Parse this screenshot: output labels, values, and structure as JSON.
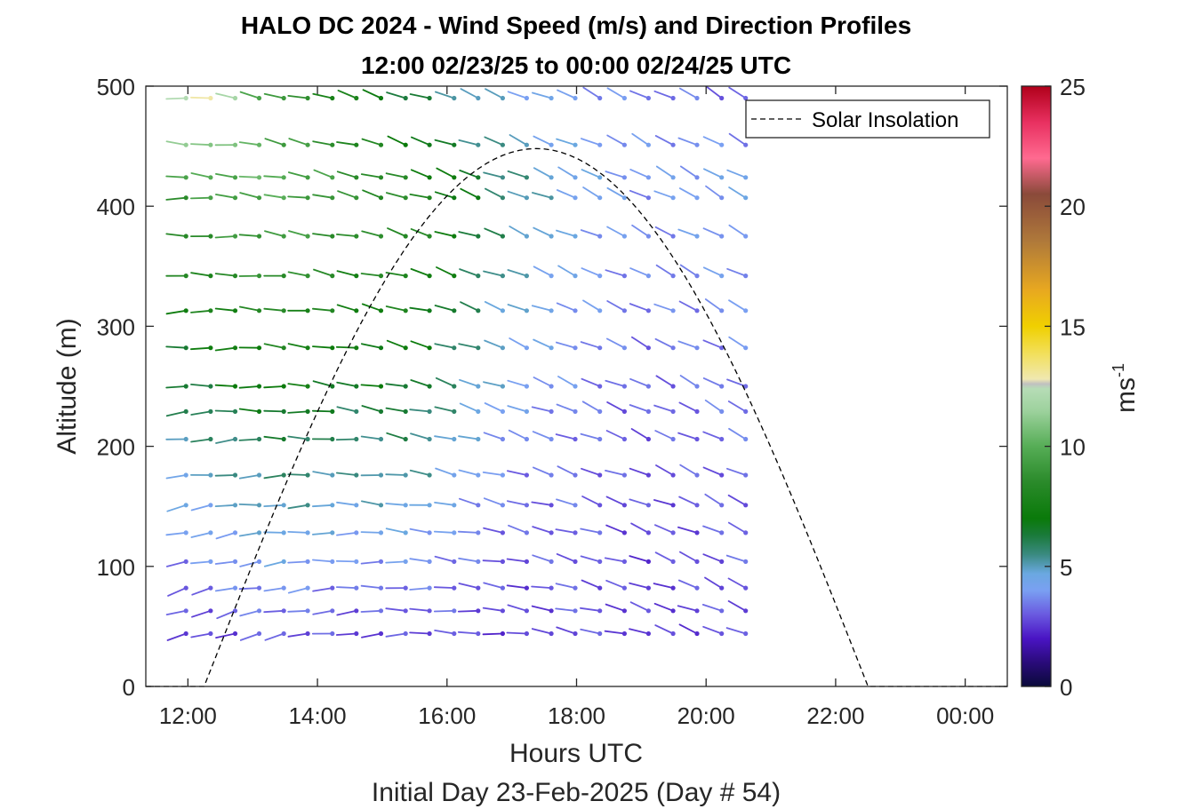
{
  "chart_data": {
    "type": "wind_barb_profile",
    "title": "HALO DC 2024 - Wind Speed (m/s) and Direction Profiles",
    "subtitle": "12:00 02/23/25 to 00:00 02/24/25  UTC",
    "xlabel": "Hours UTC",
    "xlabel2": "Initial Day 23-Feb-2025 (Day # 54)",
    "ylabel": "Altitude (m)",
    "xlim_hours": [
      11.35,
      24.65
    ],
    "ylim": [
      0,
      500
    ],
    "x_ticks": [
      {
        "hour": 12,
        "label": "12:00"
      },
      {
        "hour": 14,
        "label": "14:00"
      },
      {
        "hour": 16,
        "label": "16:00"
      },
      {
        "hour": 18,
        "label": "18:00"
      },
      {
        "hour": 20,
        "label": "20:00"
      },
      {
        "hour": 22,
        "label": "22:00"
      },
      {
        "hour": 24,
        "label": "00:00"
      }
    ],
    "y_ticks": [
      0,
      100,
      200,
      300,
      400,
      500
    ],
    "colorbar": {
      "label": "ms",
      "label_exponent": "-1",
      "range": [
        0,
        25
      ],
      "ticks": [
        0,
        5,
        10,
        15,
        20,
        25
      ],
      "stops": [
        {
          "v": 0,
          "c": "#0a0a3a"
        },
        {
          "v": 1,
          "c": "#2a0b7a"
        },
        {
          "v": 2,
          "c": "#4a14c4"
        },
        {
          "v": 3,
          "c": "#6a5ae0"
        },
        {
          "v": 4,
          "c": "#7aa0f2"
        },
        {
          "v": 4.7,
          "c": "#6aa8e0"
        },
        {
          "v": 5.5,
          "c": "#3a8a80"
        },
        {
          "v": 6.3,
          "c": "#1a7a3a"
        },
        {
          "v": 7,
          "c": "#0a7a0a"
        },
        {
          "v": 8.5,
          "c": "#2a8a2a"
        },
        {
          "v": 10,
          "c": "#56ad56"
        },
        {
          "v": 11.5,
          "c": "#9ed29e"
        },
        {
          "v": 12.4,
          "c": "#b6dcb6"
        },
        {
          "v": 12.6,
          "c": "#c0c0c0"
        },
        {
          "v": 12.8,
          "c": "#f0e8b0"
        },
        {
          "v": 13.8,
          "c": "#f2e060"
        },
        {
          "v": 15,
          "c": "#f0d000"
        },
        {
          "v": 16.5,
          "c": "#e8a820"
        },
        {
          "v": 18.5,
          "c": "#b07a3a"
        },
        {
          "v": 20.5,
          "c": "#8a4a3a"
        },
        {
          "v": 22,
          "c": "#ff6a90"
        },
        {
          "v": 23.5,
          "c": "#e83060"
        },
        {
          "v": 25,
          "c": "#b0001a"
        }
      ]
    },
    "legend": {
      "label": "Solar Insolation",
      "position": "top-right"
    },
    "solar_insolation": {
      "start_hour": 12.25,
      "peak_hour": 17.38,
      "end_hour": 22.5,
      "peak_altitude_equiv": 448
    },
    "barbs": {
      "times_hours": [
        11.97,
        12.35,
        12.73,
        13.1,
        13.48,
        13.85,
        14.23,
        14.6,
        14.98,
        15.36,
        15.73,
        16.11,
        16.48,
        16.86,
        17.23,
        17.61,
        17.98,
        18.36,
        18.74,
        19.11,
        19.49,
        19.86,
        20.24,
        20.61
      ],
      "altitudes_m": [
        44,
        63,
        82,
        104,
        128,
        151,
        176,
        206,
        229,
        250,
        282,
        313,
        342,
        375,
        407,
        424,
        451,
        490
      ],
      "speed_profile": [
        [
          2.5,
          2.6,
          2.8,
          3.0,
          3.1,
          3.0,
          2.9,
          2.7,
          2.6,
          2.8,
          2.9,
          3.0,
          2.8,
          2.6,
          2.5,
          2.7,
          3.0,
          2.8,
          2.7,
          2.6,
          2.5,
          2.7,
          2.8,
          2.9
        ],
        [
          3.0,
          3.2,
          3.4,
          3.6,
          3.8,
          3.6,
          3.4,
          3.2,
          3.3,
          3.4,
          3.3,
          3.1,
          3.0,
          2.8,
          2.7,
          2.9,
          3.1,
          3.0,
          2.8,
          2.6,
          2.7,
          2.8,
          2.9,
          3.0
        ],
        [
          3.8,
          4.0,
          4.2,
          4.4,
          4.6,
          4.5,
          4.3,
          4.1,
          4.2,
          4.3,
          4.1,
          3.8,
          3.5,
          3.2,
          3.0,
          3.1,
          3.2,
          3.0,
          2.8,
          2.7,
          2.8,
          2.9,
          3.0,
          3.1
        ],
        [
          4.5,
          4.8,
          5.0,
          5.2,
          5.5,
          5.4,
          5.2,
          5.0,
          5.1,
          5.2,
          4.9,
          4.5,
          4.0,
          3.6,
          3.3,
          3.2,
          3.3,
          3.1,
          2.9,
          2.8,
          2.9,
          3.0,
          3.1,
          3.2
        ],
        [
          5.5,
          5.8,
          6.0,
          6.2,
          6.5,
          6.4,
          6.2,
          5.9,
          6.0,
          6.1,
          5.7,
          5.2,
          4.6,
          4.1,
          3.8,
          3.6,
          3.5,
          3.3,
          3.1,
          3.0,
          3.1,
          3.2,
          3.3,
          3.4
        ],
        [
          6.5,
          6.8,
          7.0,
          7.2,
          7.5,
          7.4,
          7.1,
          6.8,
          6.9,
          7.0,
          6.5,
          6.0,
          5.3,
          4.7,
          4.3,
          4.0,
          3.8,
          3.5,
          3.3,
          3.2,
          3.3,
          3.4,
          3.5,
          3.6
        ],
        [
          7.5,
          7.7,
          8.0,
          8.2,
          8.4,
          8.2,
          7.9,
          7.5,
          7.6,
          7.7,
          7.2,
          6.6,
          5.9,
          5.2,
          4.7,
          4.4,
          4.1,
          3.8,
          3.6,
          3.4,
          3.5,
          3.6,
          3.7,
          3.8
        ],
        [
          8.5,
          8.8,
          9.0,
          9.2,
          9.4,
          9.2,
          8.9,
          8.5,
          8.6,
          8.7,
          8.1,
          7.4,
          6.6,
          5.8,
          5.2,
          4.8,
          4.4,
          4.1,
          3.9,
          3.7,
          3.8,
          3.9,
          4.0,
          4.1
        ],
        [
          9.5,
          9.8,
          10.0,
          10.2,
          10.0,
          9.6,
          9.2,
          8.8,
          8.4,
          8.0,
          7.5,
          7.0,
          6.4,
          5.8,
          5.3,
          4.9,
          4.6,
          4.3,
          4.1,
          3.9,
          4.0,
          4.1,
          4.2,
          4.3
        ],
        [
          12.5,
          13.0,
          11.5,
          10.0,
          9.0,
          8.5,
          8.0,
          7.5,
          7.0,
          6.5,
          6.0,
          5.5,
          5.0,
          4.7,
          4.4,
          4.2,
          4.0,
          3.8,
          3.6,
          3.5,
          3.4,
          3.3,
          3.2,
          3.1
        ]
      ],
      "direction_profile": [
        [
          250,
          255,
          260,
          265,
          270,
          275,
          280,
          285,
          290,
          295
        ],
        [
          265,
          270,
          275,
          280,
          285,
          290,
          292,
          294,
          296,
          298
        ],
        [
          275,
          280,
          285,
          288,
          290,
          292,
          294,
          296,
          298,
          300
        ]
      ]
    }
  }
}
